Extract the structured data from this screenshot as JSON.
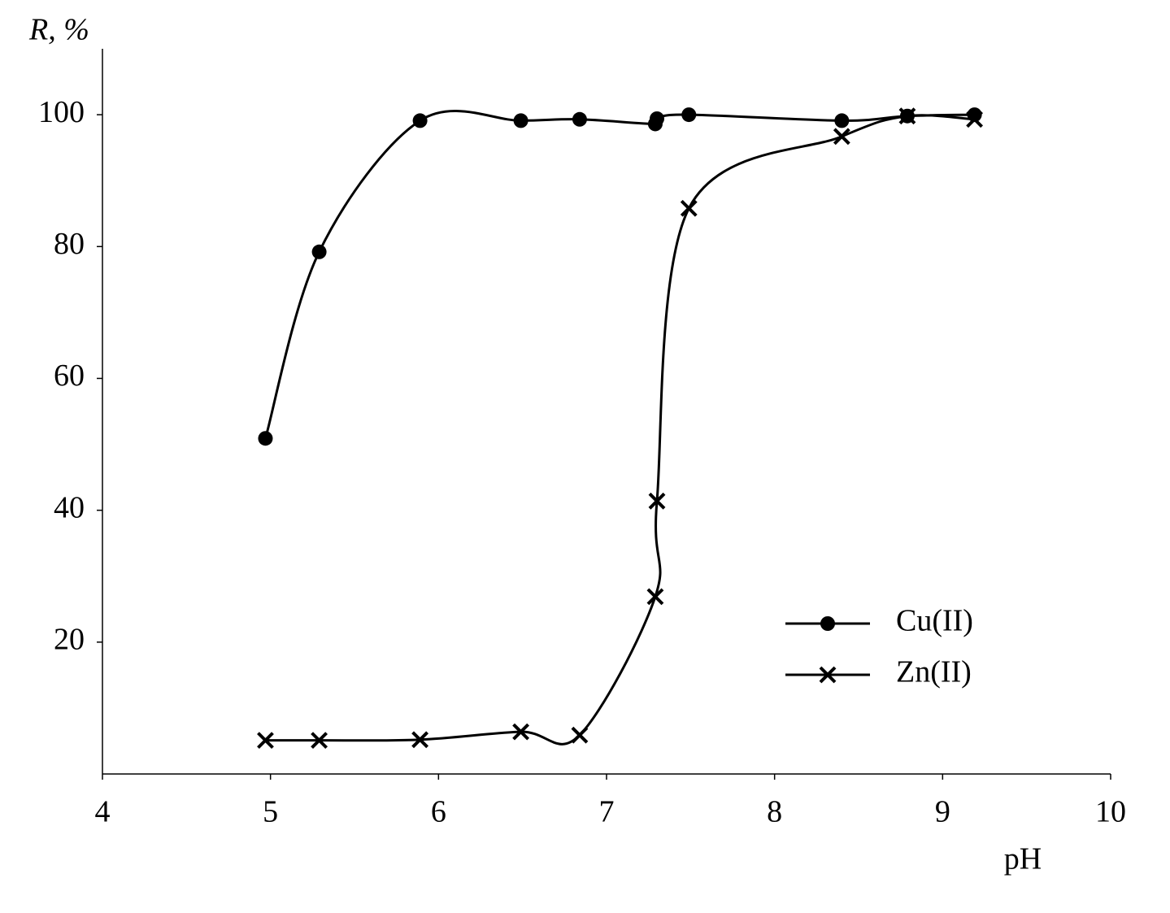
{
  "chart_data": {
    "type": "line",
    "x_label": "pH",
    "y_label": "R, %",
    "xlim": [
      4,
      10
    ],
    "xticks": [
      4,
      5,
      6,
      7,
      8,
      9,
      10
    ],
    "ylim": [
      0,
      110
    ],
    "yticks": [
      20,
      40,
      60,
      80,
      100
    ],
    "legend": "lower right",
    "series": [
      {
        "name": "Cu(II)",
        "color": "#000000",
        "marker": "circle",
        "x": [
          4.97,
          5.29,
          5.89,
          6.49,
          6.84,
          7.29,
          7.3,
          7.49,
          8.4,
          8.79,
          9.19
        ],
        "values": [
          50.9,
          79.2,
          99.1,
          99.1,
          99.3,
          98.6,
          99.4,
          100,
          99.1,
          99.8,
          100
        ]
      },
      {
        "name": "Zn(II)",
        "color": "#000000",
        "marker": "x",
        "x": [
          4.97,
          5.29,
          5.89,
          6.49,
          6.84,
          7.29,
          7.3,
          7.49,
          8.4,
          8.79,
          9.19
        ],
        "values": [
          5.1,
          5.1,
          5.2,
          6.4,
          5.9,
          26.9,
          41.4,
          85.8,
          96.7,
          99.8,
          99.3
        ]
      }
    ]
  }
}
